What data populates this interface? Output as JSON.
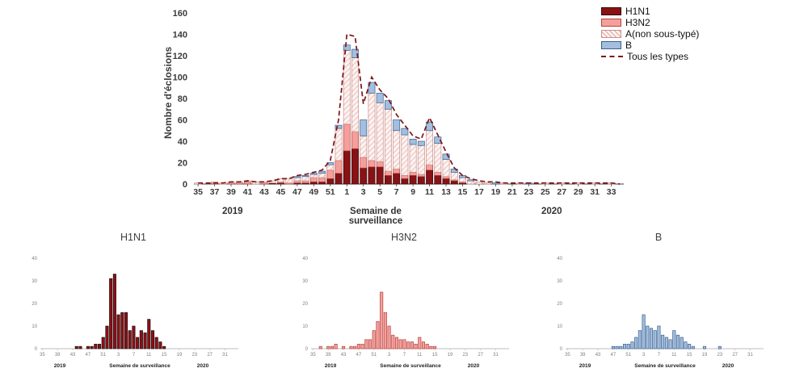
{
  "labels": {
    "year_start": "2019",
    "year_end": "2020"
  },
  "chart_data": [
    {
      "type": "bar",
      "variant": "stacked_bars_with_total_line",
      "title": "",
      "ylabel": "Nombre d'éclosions",
      "xlabel": "Semaine de surveillance",
      "ylim": [
        0,
        160
      ],
      "yticks": [
        0,
        20,
        40,
        60,
        80,
        100,
        120,
        140,
        160
      ],
      "x_tick_every": 2,
      "categories": [
        "35",
        "36",
        "37",
        "38",
        "39",
        "40",
        "41",
        "42",
        "43",
        "44",
        "45",
        "46",
        "47",
        "48",
        "49",
        "50",
        "51",
        "52",
        "1",
        "2",
        "3",
        "4",
        "5",
        "6",
        "7",
        "8",
        "9",
        "10",
        "11",
        "12",
        "13",
        "14",
        "15",
        "16",
        "17",
        "18",
        "19",
        "20",
        "21",
        "22",
        "23",
        "24",
        "25",
        "26",
        "27",
        "28",
        "29",
        "30",
        "31",
        "32",
        "33",
        "34"
      ],
      "series": [
        {
          "name": "H1N1",
          "fill": "#8a1115",
          "stroke": "#2d0d0e",
          "values": [
            0,
            0,
            0,
            0,
            0,
            0,
            0,
            0,
            0,
            1,
            1,
            0,
            1,
            1,
            2,
            2,
            5,
            10,
            31,
            33,
            15,
            16,
            16,
            8,
            10,
            5,
            8,
            7,
            13,
            8,
            5,
            3,
            1,
            0,
            0,
            0,
            0,
            0,
            0,
            0,
            0,
            0,
            0,
            0,
            0,
            0,
            0,
            0,
            0,
            0,
            0,
            0
          ]
        },
        {
          "name": "H3N2",
          "fill": "#f49f9b",
          "stroke": "#b8423d",
          "values": [
            0,
            0,
            1,
            0,
            1,
            1,
            2,
            0,
            1,
            0,
            1,
            1,
            2,
            2,
            4,
            4,
            8,
            12,
            25,
            16,
            10,
            6,
            5,
            4,
            4,
            3,
            3,
            2,
            5,
            3,
            2,
            1,
            1,
            0,
            0,
            0,
            0,
            0,
            0,
            0,
            0,
            0,
            0,
            0,
            0,
            0,
            0,
            0,
            0,
            0,
            0,
            0
          ]
        },
        {
          "name": "A(non sous-typé)",
          "fill": "#fdf3f1",
          "hatch": true,
          "hatch_color": "#dca5a1",
          "stroke": "#c9908c",
          "values": [
            1,
            0,
            1,
            1,
            1,
            1,
            1,
            2,
            1,
            2,
            3,
            4,
            3,
            4,
            3,
            4,
            5,
            30,
            69,
            69,
            20,
            63,
            55,
            58,
            36,
            38,
            26,
            27,
            32,
            27,
            16,
            7,
            4,
            3,
            2,
            1,
            0,
            1,
            0,
            1,
            0,
            0,
            1,
            0,
            1,
            0,
            1,
            0,
            1,
            0,
            1,
            0
          ]
        },
        {
          "name": "B",
          "fill": "#a3bede",
          "stroke": "#39618f",
          "values": [
            0,
            0,
            0,
            0,
            0,
            0,
            0,
            0,
            0,
            0,
            0,
            0,
            1,
            1,
            1,
            2,
            2,
            3,
            5,
            8,
            15,
            10,
            9,
            8,
            10,
            6,
            5,
            4,
            8,
            6,
            5,
            3,
            2,
            1,
            0,
            0,
            1,
            0,
            0,
            0,
            1,
            0,
            0,
            0,
            0,
            0,
            0,
            0,
            0,
            0,
            0,
            0
          ]
        }
      ],
      "line": {
        "name": "Tous les types",
        "color": "#7e1416",
        "style": "dashed",
        "values": [
          1,
          1,
          1,
          1,
          2,
          2,
          3,
          2,
          2,
          3,
          5,
          5,
          8,
          9,
          11,
          13,
          22,
          60,
          140,
          138,
          75,
          100,
          88,
          80,
          65,
          55,
          45,
          42,
          62,
          46,
          30,
          15,
          8,
          5,
          3,
          2,
          2,
          1,
          1,
          1,
          1,
          1,
          1,
          1,
          1,
          1,
          1,
          1,
          1,
          1,
          1,
          0
        ]
      }
    },
    {
      "type": "bar",
      "title": "H1N1",
      "xlabel": "Semaine de surveillance",
      "ylim": [
        0,
        40
      ],
      "yticks": [
        0,
        10,
        20,
        30,
        40
      ],
      "x_tick_every": 4,
      "fill": "#8a1115",
      "stroke": "#241012",
      "categories": [
        "35",
        "36",
        "37",
        "38",
        "39",
        "40",
        "41",
        "42",
        "43",
        "44",
        "45",
        "46",
        "47",
        "48",
        "49",
        "50",
        "51",
        "52",
        "1",
        "2",
        "3",
        "4",
        "5",
        "6",
        "7",
        "8",
        "9",
        "10",
        "11",
        "12",
        "13",
        "14",
        "15",
        "16",
        "17",
        "18",
        "19",
        "20",
        "21",
        "22",
        "23",
        "24",
        "25",
        "26",
        "27",
        "28",
        "29",
        "30",
        "31",
        "32",
        "33",
        "34"
      ],
      "values": [
        0,
        0,
        0,
        0,
        0,
        0,
        0,
        0,
        0,
        1,
        1,
        0,
        1,
        1,
        2,
        2,
        5,
        10,
        31,
        33,
        15,
        16,
        16,
        8,
        10,
        5,
        8,
        7,
        13,
        8,
        5,
        3,
        1,
        0,
        0,
        0,
        0,
        0,
        0,
        0,
        0,
        0,
        0,
        0,
        0,
        0,
        0,
        0,
        0,
        0,
        0,
        0
      ]
    },
    {
      "type": "bar",
      "title": "H3N2",
      "xlabel": "Semaine de surveillance",
      "ylim": [
        0,
        40
      ],
      "yticks": [
        0,
        10,
        20,
        30,
        40
      ],
      "x_tick_every": 4,
      "fill": "#f49f9b",
      "stroke": "#b8423d",
      "categories": [
        "35",
        "36",
        "37",
        "38",
        "39",
        "40",
        "41",
        "42",
        "43",
        "44",
        "45",
        "46",
        "47",
        "48",
        "49",
        "50",
        "51",
        "52",
        "1",
        "2",
        "3",
        "4",
        "5",
        "6",
        "7",
        "8",
        "9",
        "10",
        "11",
        "12",
        "13",
        "14",
        "15",
        "16",
        "17",
        "18",
        "19",
        "20",
        "21",
        "22",
        "23",
        "24",
        "25",
        "26",
        "27",
        "28",
        "29",
        "30",
        "31",
        "32",
        "33",
        "34"
      ],
      "values": [
        0,
        0,
        1,
        0,
        1,
        1,
        2,
        0,
        1,
        0,
        1,
        1,
        2,
        2,
        4,
        4,
        8,
        12,
        25,
        16,
        10,
        6,
        5,
        4,
        4,
        3,
        3,
        2,
        5,
        3,
        2,
        1,
        1,
        0,
        0,
        0,
        0,
        0,
        0,
        0,
        0,
        0,
        0,
        0,
        0,
        0,
        0,
        0,
        0,
        0,
        0,
        0
      ]
    },
    {
      "type": "bar",
      "title": "B",
      "xlabel": "Semaine de surveillance",
      "ylim": [
        0,
        40
      ],
      "yticks": [
        0,
        10,
        20,
        30,
        40
      ],
      "x_tick_every": 4,
      "fill": "#a3bede",
      "stroke": "#39618f",
      "categories": [
        "35",
        "36",
        "37",
        "38",
        "39",
        "40",
        "41",
        "42",
        "43",
        "44",
        "45",
        "46",
        "47",
        "48",
        "49",
        "50",
        "51",
        "52",
        "1",
        "2",
        "3",
        "4",
        "5",
        "6",
        "7",
        "8",
        "9",
        "10",
        "11",
        "12",
        "13",
        "14",
        "15",
        "16",
        "17",
        "18",
        "19",
        "20",
        "21",
        "22",
        "23",
        "24",
        "25",
        "26",
        "27",
        "28",
        "29",
        "30",
        "31",
        "32",
        "33",
        "34"
      ],
      "values": [
        0,
        0,
        0,
        0,
        0,
        0,
        0,
        0,
        0,
        0,
        0,
        0,
        1,
        1,
        1,
        2,
        2,
        3,
        5,
        8,
        15,
        10,
        9,
        8,
        10,
        6,
        5,
        4,
        8,
        6,
        5,
        3,
        2,
        1,
        0,
        0,
        1,
        0,
        0,
        0,
        1,
        0,
        0,
        0,
        0,
        0,
        0,
        0,
        0,
        0,
        0,
        0
      ]
    }
  ]
}
